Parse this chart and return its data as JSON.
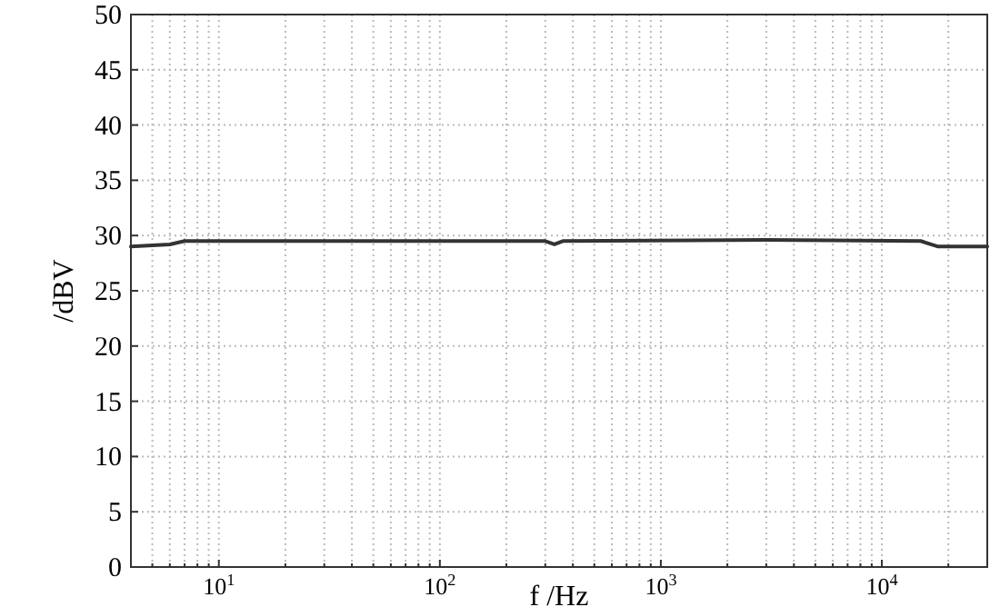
{
  "chart_data": {
    "type": "line",
    "xlabel": "f /Hz",
    "ylabel": "/dBV",
    "log": "x",
    "grid": true,
    "xlim": [
      4,
      30000
    ],
    "ylim": [
      0,
      50
    ],
    "yticks": [
      0,
      5,
      10,
      15,
      20,
      25,
      30,
      35,
      40,
      45,
      50
    ],
    "xticks": [
      {
        "value": 5,
        "label": null
      },
      {
        "value": 6,
        "label": null
      },
      {
        "value": 7,
        "label": null
      },
      {
        "value": 8,
        "label": null
      },
      {
        "value": 9,
        "label": null
      },
      {
        "value": 10,
        "label": "10$^{1}$"
      },
      {
        "value": 20,
        "label": null
      },
      {
        "value": 30,
        "label": null
      },
      {
        "value": 40,
        "label": null
      },
      {
        "value": 50,
        "label": null
      },
      {
        "value": 60,
        "label": null
      },
      {
        "value": 70,
        "label": null
      },
      {
        "value": 80,
        "label": null
      },
      {
        "value": 90,
        "label": null
      },
      {
        "value": 100,
        "label": "10$^{2}$"
      },
      {
        "value": 200,
        "label": null
      },
      {
        "value": 300,
        "label": null
      },
      {
        "value": 400,
        "label": null
      },
      {
        "value": 500,
        "label": null
      },
      {
        "value": 600,
        "label": null
      },
      {
        "value": 700,
        "label": null
      },
      {
        "value": 800,
        "label": null
      },
      {
        "value": 900,
        "label": null
      },
      {
        "value": 1000,
        "label": "10$^{3}$"
      },
      {
        "value": 2000,
        "label": null
      },
      {
        "value": 3000,
        "label": null
      },
      {
        "value": 4000,
        "label": null
      },
      {
        "value": 5000,
        "label": null
      },
      {
        "value": 6000,
        "label": null
      },
      {
        "value": 7000,
        "label": null
      },
      {
        "value": 8000,
        "label": null
      },
      {
        "value": 9000,
        "label": null
      },
      {
        "value": 10000,
        "label": "10$^{4}$"
      },
      {
        "value": 20000,
        "label": null
      }
    ],
    "line_style": "solid",
    "series": [
      {
        "color": "#333333",
        "x": [
          4,
          6,
          7,
          40,
          300,
          330,
          360,
          3000,
          15000,
          18000,
          30000
        ],
        "values": [
          29,
          29.2,
          29.5,
          29.5,
          29.5,
          29.2,
          29.5,
          29.6,
          29.5,
          29,
          29
        ]
      }
    ]
  }
}
